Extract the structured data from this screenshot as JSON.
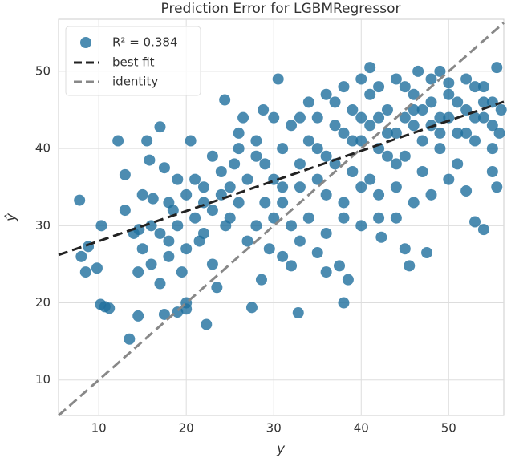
{
  "chart_data": {
    "type": "scatter",
    "title": "Prediction Error for LGBMRegressor",
    "xlabel": "y",
    "ylabel": "ŷ",
    "xlim": [
      5.4,
      56.3
    ],
    "ylim": [
      5.4,
      56.75
    ],
    "xticks": [
      10,
      20,
      30,
      40,
      50
    ],
    "yticks": [
      10,
      20,
      30,
      40,
      50
    ],
    "grid": true,
    "legend": "upper left",
    "series": [
      {
        "name": "R² = 0.384",
        "color": "#1f6f9e",
        "x": [
          7.8,
          8.0,
          8.5,
          8.8,
          9.8,
          10.3,
          10.2,
          10.7,
          11.2,
          12.2,
          13.0,
          13.5,
          14.5,
          14.6,
          15.5,
          15.8,
          16.2,
          17.0,
          17.5,
          14.0,
          15,
          14.5,
          16,
          17,
          18,
          18.5,
          19,
          19.5,
          17.5,
          19,
          20,
          20,
          22.3,
          20.5,
          21,
          22,
          21.5,
          23,
          23.5,
          24.5,
          25,
          25.5,
          26,
          24.4,
          26.5,
          28.8,
          30.5,
          27.5,
          28.6,
          29.5,
          31,
          32,
          32.8,
          35,
          36,
          37.5,
          38,
          38.5,
          42,
          42.3,
          45,
          45.5,
          47.5,
          52,
          53,
          54,
          55.5,
          55.8,
          41,
          46.5,
          49,
          55.5,
          55,
          30,
          31,
          32,
          33,
          34,
          35,
          36,
          37,
          38,
          39,
          40,
          41,
          42,
          43,
          44,
          45,
          46,
          47,
          48,
          49,
          50,
          51,
          52,
          53,
          54,
          55,
          56,
          31,
          33,
          35,
          37,
          39,
          41,
          43,
          45,
          47,
          49,
          51,
          53,
          55,
          34,
          36,
          38,
          40,
          42,
          44,
          46,
          48,
          50,
          52,
          54,
          36,
          38,
          40,
          42,
          44,
          46,
          48,
          50,
          29,
          28,
          27,
          26,
          25,
          24,
          23,
          22,
          21,
          20,
          19,
          18,
          17,
          16,
          15,
          13,
          32,
          34,
          36,
          38,
          40,
          44,
          30,
          28,
          27,
          29,
          33,
          31,
          39,
          41,
          43,
          45,
          47,
          49,
          51,
          53,
          55,
          40,
          42,
          44,
          46,
          48,
          50,
          52,
          54,
          37,
          35,
          33,
          30,
          28,
          26,
          24,
          22,
          20,
          18,
          23
        ],
        "y": [
          33.3,
          26,
          24,
          27.3,
          24.5,
          30,
          19.8,
          19.5,
          19.3,
          41,
          36.6,
          15.3,
          18.3,
          29.5,
          41,
          38.5,
          33.5,
          42.8,
          37.5,
          29,
          27,
          24,
          25,
          22.5,
          26,
          32,
          30,
          24,
          18.5,
          18.8,
          20,
          19.2,
          17.2,
          41,
          36,
          33,
          28,
          25,
          22,
          30,
          35,
          38,
          42,
          46.3,
          44,
          45,
          49,
          19.4,
          23,
          27,
          26,
          24.8,
          18.7,
          26.5,
          24,
          24.8,
          20,
          23,
          31,
          28.5,
          27,
          24.8,
          26.5,
          34.5,
          30.5,
          29.5,
          35,
          42,
          50.5,
          50,
          50,
          50.5,
          37,
          36,
          40,
          43,
          38,
          41,
          44,
          39,
          46,
          42,
          37,
          44,
          47,
          40,
          45,
          38,
          48,
          43,
          41,
          46,
          44,
          47,
          42,
          45,
          48,
          44,
          46,
          45,
          33,
          35,
          36,
          38,
          41,
          36,
          42,
          39,
          37,
          40,
          38,
          41,
          40,
          46,
          47,
          48,
          49,
          48,
          49,
          47,
          49,
          48.5,
          49,
          48,
          34,
          33,
          35,
          34,
          35,
          33,
          34,
          36,
          38,
          41,
          36,
          33,
          31,
          37,
          39,
          35,
          31,
          34,
          36,
          33,
          29,
          30,
          34,
          32,
          30,
          31,
          29,
          31,
          30,
          31,
          31,
          30,
          28,
          33,
          28,
          35,
          45,
          43,
          39,
          44,
          45,
          42,
          46,
          44,
          43,
          41,
          44,
          42,
          45,
          43,
          44,
          42,
          46,
          43,
          40,
          44,
          44,
          39,
          40,
          34,
          29,
          27,
          28,
          32
        ]
      }
    ],
    "best_fit": {
      "name": "best fit",
      "slope": 0.39,
      "intercept": 24.1
    },
    "identity": {
      "name": "identity"
    }
  }
}
